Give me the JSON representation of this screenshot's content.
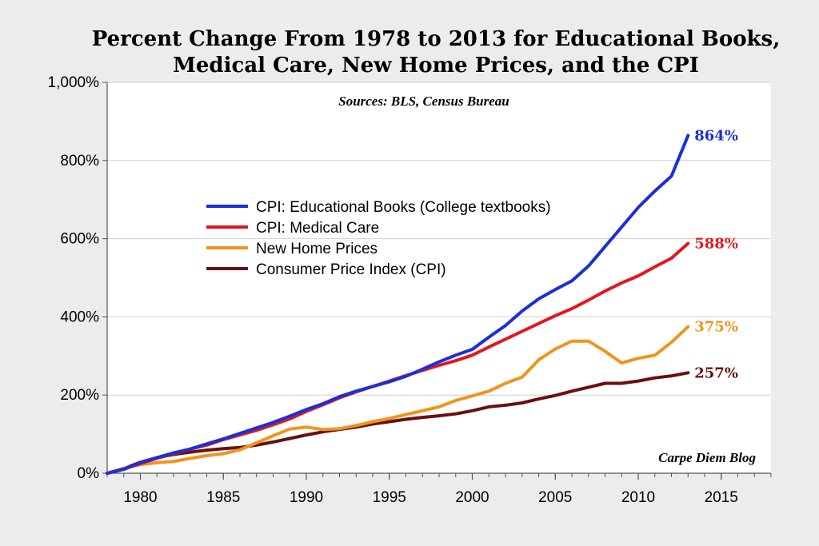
{
  "chart_data": {
    "type": "line",
    "title_lines": [
      "Percent Change From 1978 to 2013 for Educational Books,",
      "Medical Care, New Home Prices, and the CPI"
    ],
    "subtitle": "Sources: BLS, Census Bureau",
    "credit": "Carpe Diem Blog",
    "xlabel": "",
    "ylabel": "",
    "xlim": [
      1978,
      2018
    ],
    "ylim": [
      0,
      1000
    ],
    "x_ticks": [
      1980,
      1985,
      1990,
      1995,
      2000,
      2005,
      2010,
      2015
    ],
    "y_ticks": [
      {
        "value": 0,
        "label": "0%"
      },
      {
        "value": 200,
        "label": "200%"
      },
      {
        "value": 400,
        "label": "400%"
      },
      {
        "value": 600,
        "label": "600%"
      },
      {
        "value": 800,
        "label": "800%"
      },
      {
        "value": 1000,
        "label": "1,000%"
      }
    ],
    "grid": "horizontal",
    "legend_position": "upper-left",
    "x": [
      1978,
      1979,
      1980,
      1981,
      1982,
      1983,
      1984,
      1985,
      1986,
      1987,
      1988,
      1989,
      1990,
      1991,
      1992,
      1993,
      1994,
      1995,
      1996,
      1997,
      1998,
      1999,
      2000,
      2001,
      2002,
      2003,
      2004,
      2005,
      2006,
      2007,
      2008,
      2009,
      2010,
      2011,
      2012,
      2013
    ],
    "series": [
      {
        "name": "CPI: Educational Books  (College textbooks)",
        "color": "#1c2fd8",
        "end_label": "864%",
        "values": [
          0,
          10,
          27,
          40,
          52,
          62,
          75,
          88,
          102,
          116,
          130,
          146,
          163,
          178,
          196,
          210,
          222,
          234,
          248,
          266,
          285,
          302,
          317,
          348,
          378,
          415,
          446,
          470,
          492,
          530,
          580,
          630,
          680,
          722,
          760,
          864
        ]
      },
      {
        "name": "CPI: Medical Care",
        "color": "#e0191e",
        "end_label": "588%",
        "values": [
          0,
          11,
          25,
          38,
          50,
          62,
          72,
          86,
          98,
          110,
          124,
          139,
          158,
          175,
          193,
          208,
          222,
          236,
          250,
          263,
          276,
          288,
          302,
          323,
          343,
          363,
          383,
          403,
          421,
          443,
          466,
          487,
          505,
          528,
          550,
          588
        ]
      },
      {
        "name": "New Home Prices",
        "color": "#f0941c",
        "end_label": "375%",
        "values": [
          0,
          13,
          22,
          27,
          30,
          38,
          45,
          50,
          60,
          78,
          96,
          113,
          118,
          112,
          114,
          122,
          132,
          140,
          150,
          160,
          170,
          186,
          198,
          210,
          230,
          246,
          290,
          318,
          338,
          338,
          312,
          282,
          294,
          302,
          335,
          375
        ]
      },
      {
        "name": "Consumer Price Index (CPI)",
        "color": "#6b0f10",
        "end_label": "257%",
        "values": [
          0,
          12,
          28,
          40,
          48,
          54,
          59,
          63,
          66,
          72,
          80,
          89,
          98,
          106,
          112,
          118,
          126,
          132,
          138,
          143,
          147,
          152,
          160,
          170,
          174,
          180,
          190,
          199,
          210,
          220,
          230,
          230,
          236,
          244,
          249,
          257
        ]
      }
    ]
  }
}
